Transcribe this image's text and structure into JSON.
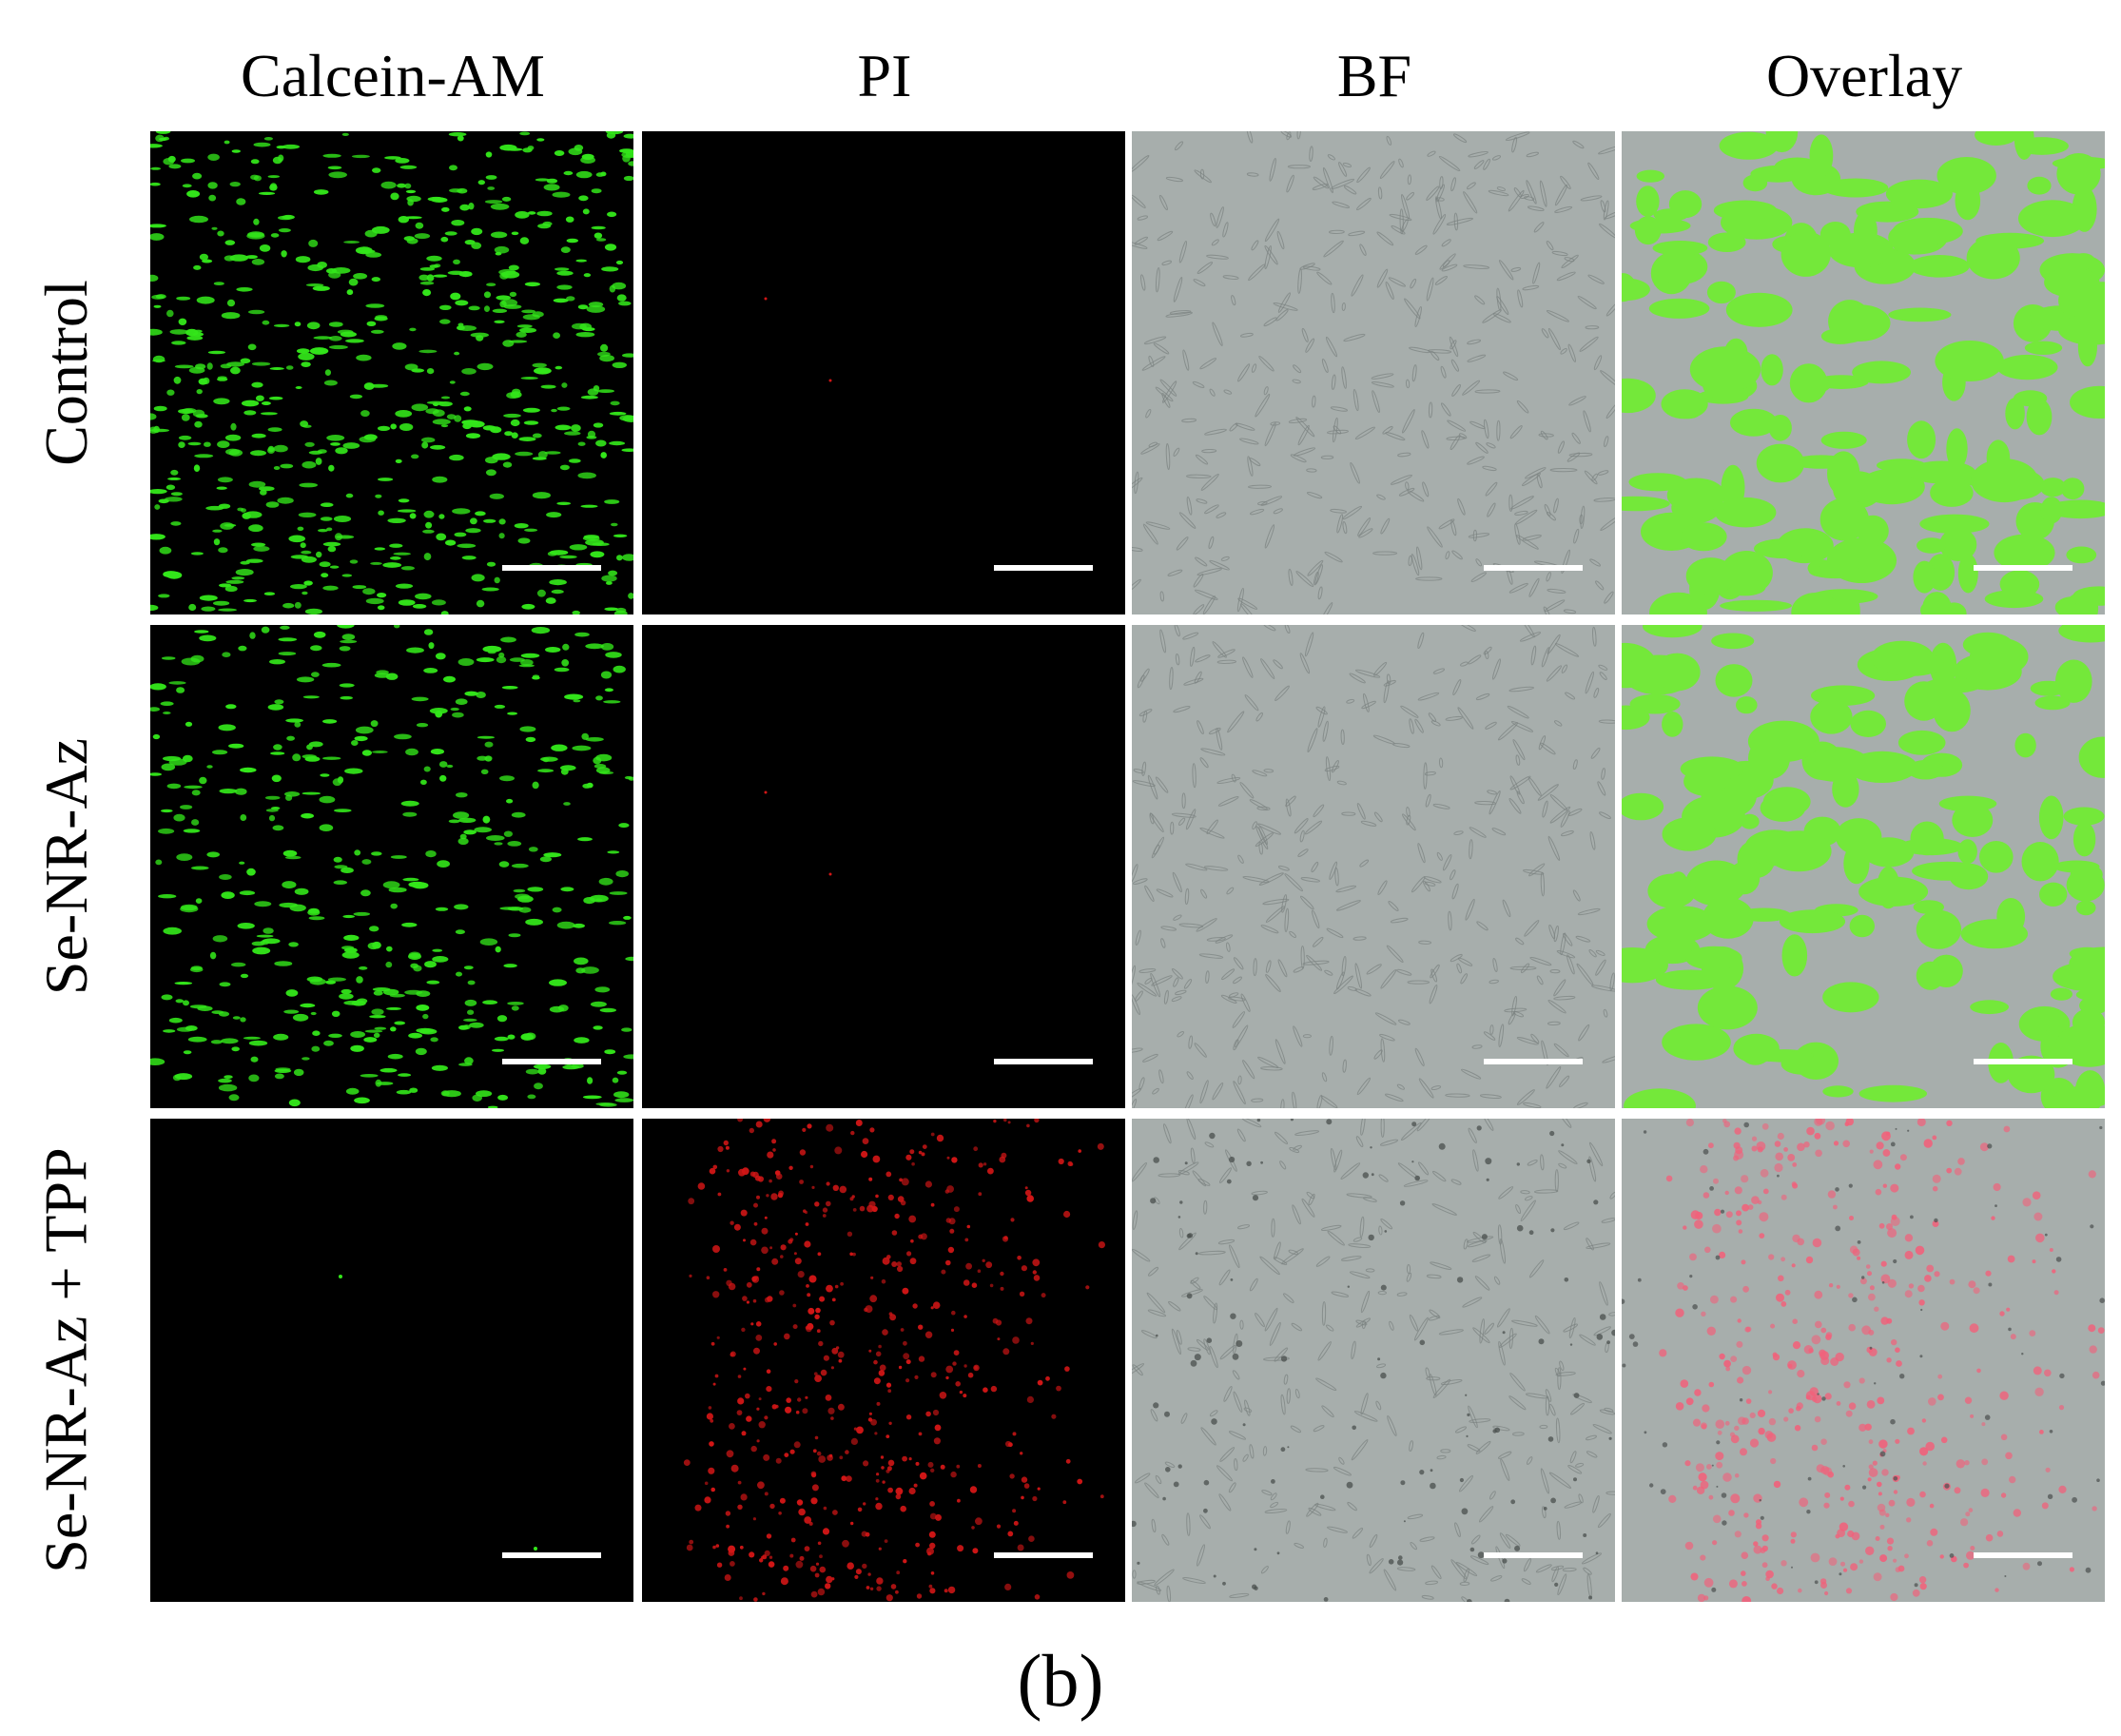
{
  "columns": [
    "Calcein-AM",
    "PI",
    "BF",
    "Overlay"
  ],
  "rows": [
    "Control",
    "Se-NR-Az",
    "Se-NR-Az + TPP"
  ],
  "caption": "(b)",
  "colors": {
    "calcein_green": "#33e61a",
    "pi_red": "#d21616",
    "bf_gray": "#a7aeac",
    "overlay_green": "#74e83a",
    "overlay_red": "#f2607a",
    "scale_bar": "#ffffff"
  }
}
